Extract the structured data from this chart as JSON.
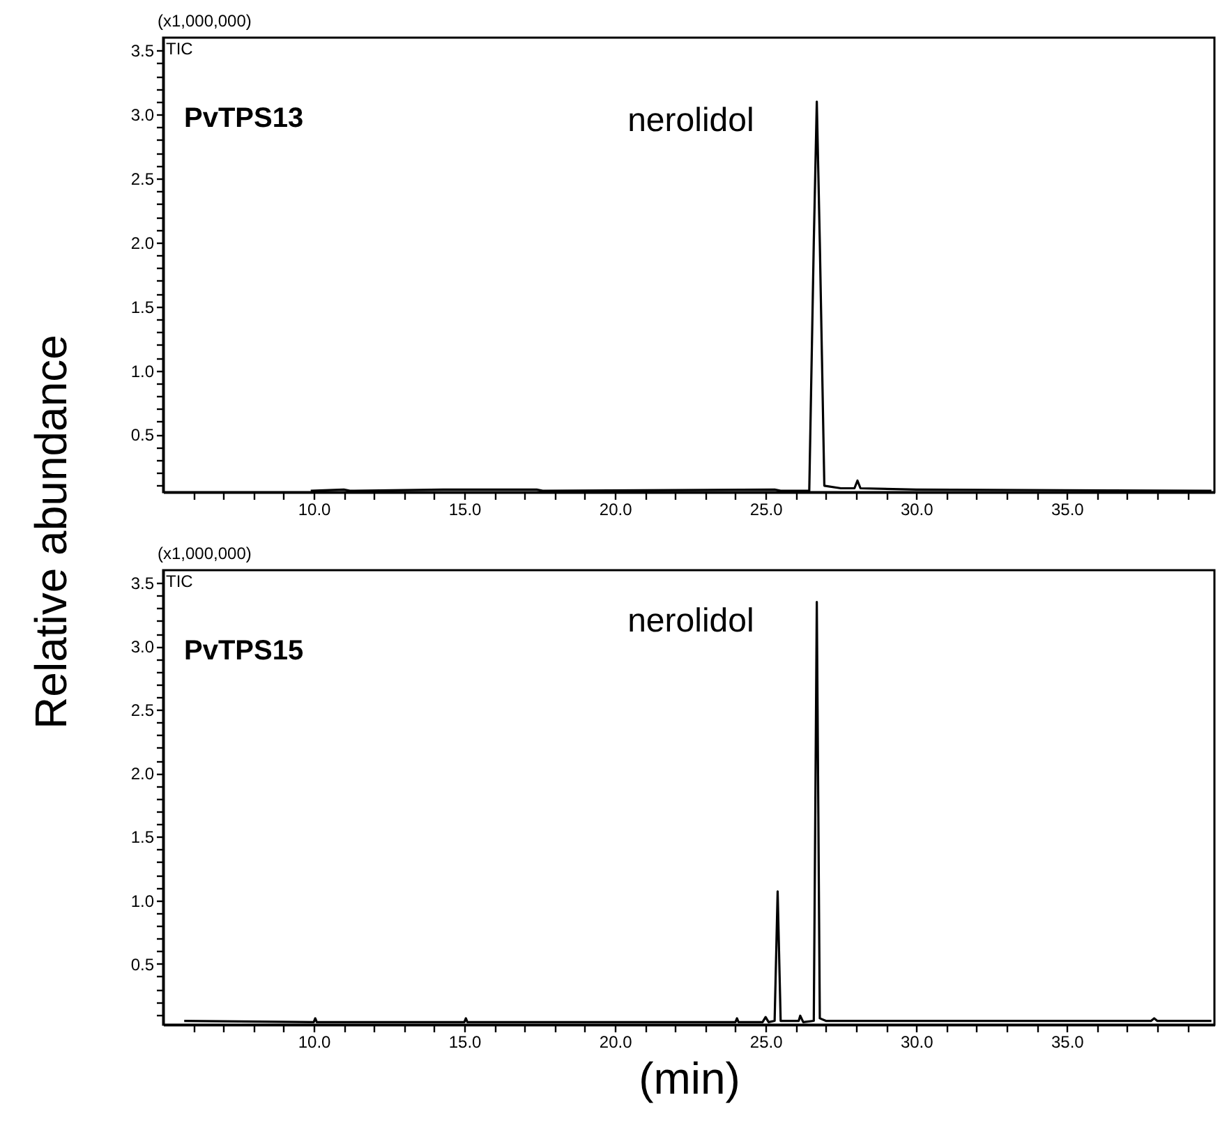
{
  "chart_data": [
    {
      "type": "line",
      "title": "PvTPS13",
      "ylabel": "Relative abundance",
      "annotations": [
        "(x1,000,000)",
        "TIC",
        {
          "text": "nerolidol",
          "x": 26.7,
          "y": 3.1
        }
      ],
      "series": [
        {
          "color": "#000000",
          "x": [
            9.9,
            11.0,
            11.2,
            14.3,
            17.4,
            17.6,
            25.3,
            25.5,
            26.45,
            26.6,
            26.7,
            26.8,
            26.95,
            27.5,
            27.95,
            28.05,
            28.15,
            30,
            39.8
          ],
          "values": [
            0.06,
            0.07,
            0.06,
            0.07,
            0.07,
            0.06,
            0.07,
            0.06,
            0.06,
            2.0,
            3.1,
            2.0,
            0.1,
            0.08,
            0.08,
            0.14,
            0.08,
            0.07,
            0.06
          ]
        }
      ],
      "xlim": [
        5,
        39.9
      ],
      "ylim": [
        0.05,
        3.6
      ],
      "xticks": [
        {
          "value": 6,
          "label": null
        },
        {
          "value": 7,
          "label": null
        },
        {
          "value": 8,
          "label": null
        },
        {
          "value": 9,
          "label": null
        },
        {
          "value": 10,
          "label": "10.0"
        },
        {
          "value": 11,
          "label": null
        },
        {
          "value": 12,
          "label": null
        },
        {
          "value": 13,
          "label": null
        },
        {
          "value": 14,
          "label": null
        },
        {
          "value": 15,
          "label": "15.0"
        },
        {
          "value": 16,
          "label": null
        },
        {
          "value": 17,
          "label": null
        },
        {
          "value": 18,
          "label": null
        },
        {
          "value": 19,
          "label": null
        },
        {
          "value": 20,
          "label": "20.0"
        },
        {
          "value": 21,
          "label": null
        },
        {
          "value": 22,
          "label": null
        },
        {
          "value": 23,
          "label": null
        },
        {
          "value": 24,
          "label": null
        },
        {
          "value": 25,
          "label": "25.0"
        },
        {
          "value": 26,
          "label": null
        },
        {
          "value": 27,
          "label": null
        },
        {
          "value": 28,
          "label": null
        },
        {
          "value": 29,
          "label": null
        },
        {
          "value": 30,
          "label": "30.0"
        },
        {
          "value": 31,
          "label": null
        },
        {
          "value": 32,
          "label": null
        },
        {
          "value": 33,
          "label": null
        },
        {
          "value": 34,
          "label": null
        },
        {
          "value": 35,
          "label": "35.0"
        },
        {
          "value": 36,
          "label": null
        },
        {
          "value": 37,
          "label": null
        },
        {
          "value": 38,
          "label": null
        },
        {
          "value": 39,
          "label": null
        }
      ],
      "yticks": [
        {
          "value": 0.1,
          "label": null
        },
        {
          "value": 0.2,
          "label": null
        },
        {
          "value": 0.3,
          "label": null
        },
        {
          "value": 0.4,
          "label": null
        },
        0.5,
        {
          "value": 0.6,
          "label": null
        },
        {
          "value": 0.7,
          "label": null
        },
        {
          "value": 0.8,
          "label": null
        },
        {
          "value": 0.9,
          "label": null
        },
        {
          "value": 1,
          "label": "1.0"
        },
        {
          "value": 1.1,
          "label": null
        },
        {
          "value": 1.2,
          "label": null
        },
        {
          "value": 1.3,
          "label": null
        },
        {
          "value": 1.4,
          "label": null
        },
        1.5,
        {
          "value": 1.6,
          "label": null
        },
        {
          "value": 1.7,
          "label": null
        },
        {
          "value": 1.8,
          "label": null
        },
        {
          "value": 1.9,
          "label": null
        },
        {
          "value": 2,
          "label": "2.0"
        },
        {
          "value": 2.1,
          "label": null
        },
        {
          "value": 2.2,
          "label": null
        },
        {
          "value": 2.3,
          "label": null
        },
        {
          "value": 2.4,
          "label": null
        },
        2.5,
        {
          "value": 2.6,
          "label": null
        },
        {
          "value": 2.7,
          "label": null
        },
        {
          "value": 2.8,
          "label": null
        },
        {
          "value": 2.9,
          "label": null
        },
        {
          "value": 3,
          "label": "3.0"
        },
        {
          "value": 3.1,
          "label": null
        },
        {
          "value": 3.2,
          "label": null
        },
        {
          "value": 3.3,
          "label": null
        },
        {
          "value": 3.4,
          "label": null
        },
        3.5
      ],
      "grid": false
    },
    {
      "type": "line",
      "title": "PvTPS15",
      "xlabel": "(min)",
      "annotations": [
        "(x1,000,000)",
        "TIC",
        {
          "text": "nerolidol",
          "x": 26.7,
          "y": 3.35
        }
      ],
      "series": [
        {
          "color": "#000000",
          "x": [
            5.7,
            10,
            10.05,
            10.1,
            15,
            15.05,
            15.1,
            24,
            24.05,
            24.1,
            24.9,
            25.0,
            25.1,
            25.3,
            25.4,
            25.5,
            26.1,
            26.15,
            26.25,
            26.6,
            26.7,
            26.8,
            27.0,
            37.8,
            37.9,
            38,
            39.8
          ],
          "values": [
            0.05,
            0.04,
            0.07,
            0.04,
            0.04,
            0.07,
            0.04,
            0.04,
            0.07,
            0.04,
            0.04,
            0.08,
            0.04,
            0.05,
            1.07,
            0.05,
            0.05,
            0.09,
            0.04,
            0.05,
            3.35,
            0.07,
            0.05,
            0.05,
            0.07,
            0.05,
            0.05
          ]
        }
      ],
      "xlim": [
        5,
        39.9
      ],
      "ylim": [
        0.02,
        3.6
      ],
      "xticks": [
        {
          "value": 6,
          "label": null
        },
        {
          "value": 7,
          "label": null
        },
        {
          "value": 8,
          "label": null
        },
        {
          "value": 9,
          "label": null
        },
        {
          "value": 10,
          "label": "10.0"
        },
        {
          "value": 11,
          "label": null
        },
        {
          "value": 12,
          "label": null
        },
        {
          "value": 13,
          "label": null
        },
        {
          "value": 14,
          "label": null
        },
        {
          "value": 15,
          "label": "15.0"
        },
        {
          "value": 16,
          "label": null
        },
        {
          "value": 17,
          "label": null
        },
        {
          "value": 18,
          "label": null
        },
        {
          "value": 19,
          "label": null
        },
        {
          "value": 20,
          "label": "20.0"
        },
        {
          "value": 21,
          "label": null
        },
        {
          "value": 22,
          "label": null
        },
        {
          "value": 23,
          "label": null
        },
        {
          "value": 24,
          "label": null
        },
        {
          "value": 25,
          "label": "25.0"
        },
        {
          "value": 26,
          "label": null
        },
        {
          "value": 27,
          "label": null
        },
        {
          "value": 28,
          "label": null
        },
        {
          "value": 29,
          "label": null
        },
        {
          "value": 30,
          "label": "30.0"
        },
        {
          "value": 31,
          "label": null
        },
        {
          "value": 32,
          "label": null
        },
        {
          "value": 33,
          "label": null
        },
        {
          "value": 34,
          "label": null
        },
        {
          "value": 35,
          "label": "35.0"
        },
        {
          "value": 36,
          "label": null
        },
        {
          "value": 37,
          "label": null
        },
        {
          "value": 38,
          "label": null
        },
        {
          "value": 39,
          "label": null
        }
      ],
      "yticks": [
        {
          "value": 0.1,
          "label": null
        },
        {
          "value": 0.2,
          "label": null
        },
        {
          "value": 0.3,
          "label": null
        },
        {
          "value": 0.4,
          "label": null
        },
        0.5,
        {
          "value": 0.6,
          "label": null
        },
        {
          "value": 0.7,
          "label": null
        },
        {
          "value": 0.8,
          "label": null
        },
        {
          "value": 0.9,
          "label": null
        },
        {
          "value": 1,
          "label": "1.0"
        },
        {
          "value": 1.1,
          "label": null
        },
        {
          "value": 1.2,
          "label": null
        },
        {
          "value": 1.3,
          "label": null
        },
        {
          "value": 1.4,
          "label": null
        },
        1.5,
        {
          "value": 1.6,
          "label": null
        },
        {
          "value": 1.7,
          "label": null
        },
        {
          "value": 1.8,
          "label": null
        },
        {
          "value": 1.9,
          "label": null
        },
        {
          "value": 2,
          "label": "2.0"
        },
        {
          "value": 2.1,
          "label": null
        },
        {
          "value": 2.2,
          "label": null
        },
        {
          "value": 2.3,
          "label": null
        },
        {
          "value": 2.4,
          "label": null
        },
        2.5,
        {
          "value": 2.6,
          "label": null
        },
        {
          "value": 2.7,
          "label": null
        },
        {
          "value": 2.8,
          "label": null
        },
        {
          "value": 2.9,
          "label": null
        },
        {
          "value": 3,
          "label": "3.0"
        },
        {
          "value": 3.1,
          "label": null
        },
        {
          "value": 3.2,
          "label": null
        },
        {
          "value": 3.3,
          "label": null
        },
        {
          "value": 3.4,
          "label": null
        },
        3.5
      ],
      "grid": false
    }
  ]
}
